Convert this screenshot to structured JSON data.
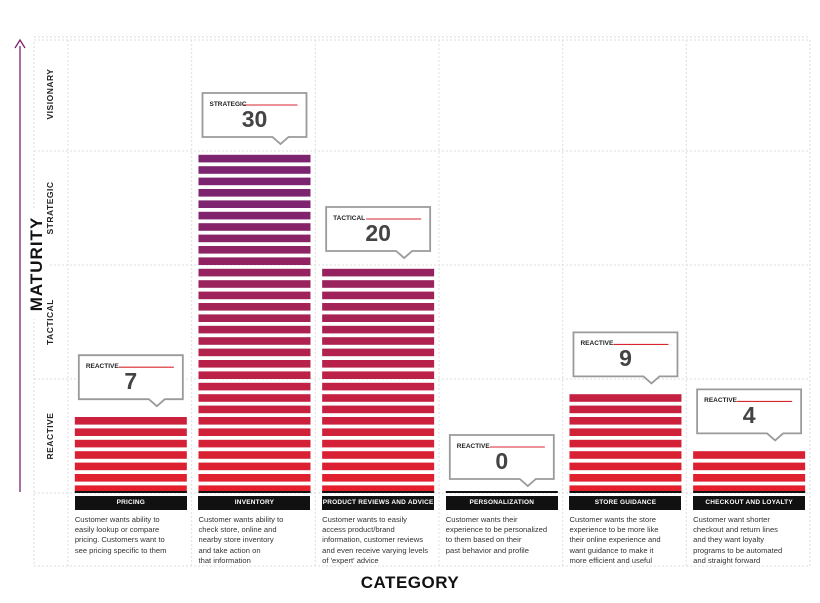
{
  "y_axis_title": "MATURITY",
  "x_axis_title": "CATEGORY",
  "colors": {
    "bar_low": "#e8202a",
    "bar_high": "#7d2470",
    "grid": "#dddddd",
    "axis_arrow": "#7a2272",
    "label_bg": "#111111",
    "callout_rule": "#d9262c"
  },
  "chart_data": {
    "type": "bar",
    "ylim": [
      0,
      40
    ],
    "maturity_levels": [
      "REACTIVE",
      "TACTICAL",
      "STRATEGIC",
      "VISIONARY"
    ],
    "categories": [
      "PRICING",
      "INVENTORY",
      "PRODUCT REVIEWS AND ADVICE",
      "PERSONALIZATION",
      "STORE GUIDANCE",
      "CHECKOUT AND LOYALTY"
    ],
    "values": [
      7,
      30,
      20,
      0,
      9,
      4
    ],
    "value_levels": [
      "REACTIVE",
      "STRATEGIC",
      "TACTICAL",
      "REACTIVE",
      "REACTIVE",
      "REACTIVE"
    ],
    "descriptions": [
      [
        "Customer wants ability to",
        "easily lookup or compare",
        "pricing. Customers want to",
        "see pricing specific to them"
      ],
      [
        "Customer wants ability to",
        "check store, online and",
        "nearby store inventory",
        "and take action on",
        "that information"
      ],
      [
        "Customer wants to easily",
        "access product/brand",
        "information, customer reviews",
        "and even receive varying levels",
        "of 'expert' advice"
      ],
      [
        "Customer wants their",
        "experience to be personalized",
        "to them based on their",
        "past behavior and profile"
      ],
      [
        "Customer wants the store",
        "experience to be more like",
        "their online experience and",
        "want guidance to make it",
        "more efficient and useful"
      ],
      [
        "Customer want shorter",
        "checkout and return lines",
        "and they want loyalty",
        "programs to be automated",
        "and straight forward"
      ]
    ],
    "grid": true
  }
}
